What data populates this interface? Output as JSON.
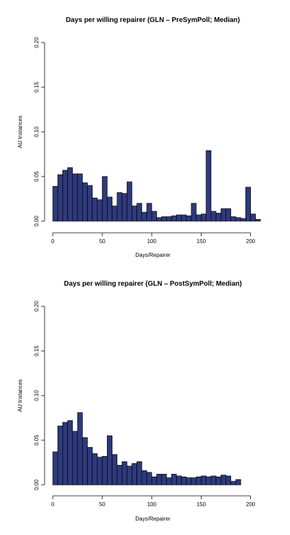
{
  "bar_color": "#2e3a7c",
  "chart_data": [
    {
      "type": "bar",
      "title": "Days per willing repairer (GLN – PreSymPoll; Median)",
      "xlabel": "Days/Repairer",
      "ylabel": "AU Instances",
      "bin_start": 0,
      "bin_width": 5,
      "xlim": [
        0,
        210
      ],
      "ylim": [
        0,
        0.2
      ],
      "x_ticks": [
        "0",
        "50",
        "100",
        "150",
        "200"
      ],
      "y_ticks": [
        "0.00",
        "0.05",
        "0.10",
        "0.15",
        "0.20"
      ],
      "values": [
        0.039,
        0.052,
        0.057,
        0.06,
        0.053,
        0.053,
        0.043,
        0.04,
        0.026,
        0.024,
        0.05,
        0.027,
        0.017,
        0.032,
        0.031,
        0.044,
        0.017,
        0.02,
        0.01,
        0.02,
        0.011,
        0.004,
        0.005,
        0.005,
        0.006,
        0.007,
        0.007,
        0.006,
        0.02,
        0.007,
        0.008,
        0.079,
        0.011,
        0.009,
        0.014,
        0.014,
        0.005,
        0.004,
        0.003,
        0.038,
        0.008,
        0.002
      ]
    },
    {
      "type": "bar",
      "title": "Days per willing repairer (GLN – PostSymPoll; Median)",
      "xlabel": "Days/Repairer",
      "ylabel": "AU Instances",
      "bin_start": 0,
      "bin_width": 5,
      "xlim": [
        0,
        210
      ],
      "ylim": [
        0,
        0.2
      ],
      "x_ticks": [
        "0",
        "50",
        "100",
        "150",
        "200"
      ],
      "y_ticks": [
        "0.00",
        "0.05",
        "0.10",
        "0.15",
        "0.20"
      ],
      "values": [
        0.037,
        0.066,
        0.07,
        0.072,
        0.06,
        0.081,
        0.053,
        0.042,
        0.035,
        0.031,
        0.032,
        0.055,
        0.034,
        0.022,
        0.026,
        0.021,
        0.024,
        0.026,
        0.016,
        0.014,
        0.009,
        0.012,
        0.012,
        0.008,
        0.012,
        0.01,
        0.009,
        0.008,
        0.008,
        0.009,
        0.01,
        0.009,
        0.01,
        0.009,
        0.011,
        0.01,
        0.004,
        0.006
      ]
    }
  ]
}
